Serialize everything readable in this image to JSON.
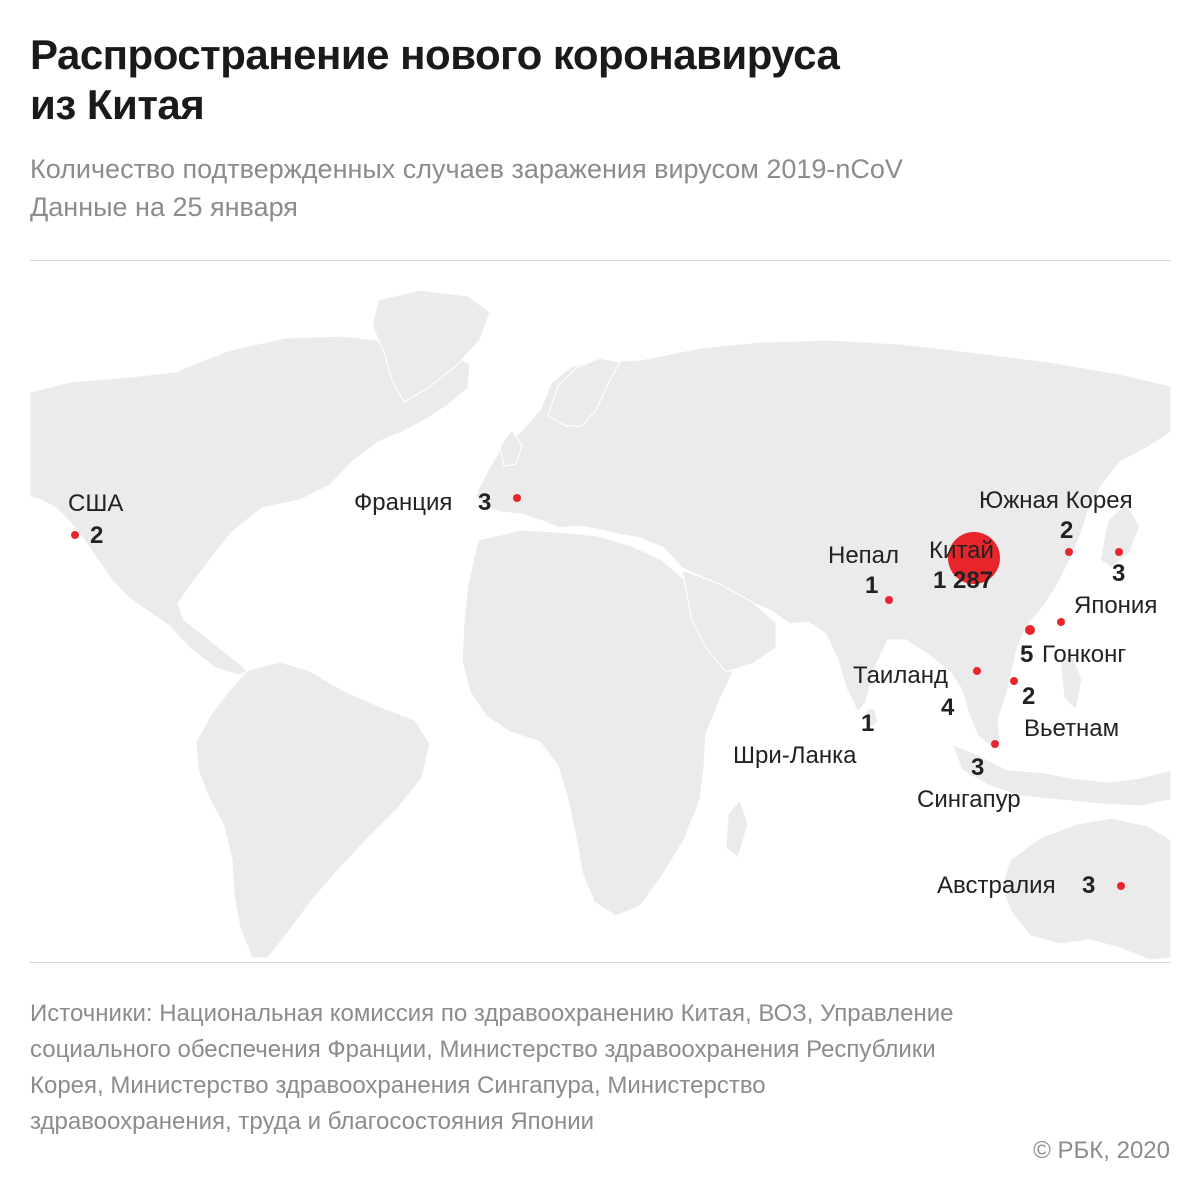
{
  "title": {
    "line1": "Распространение нового коронавируса",
    "line2": "из Китая"
  },
  "subtitle": {
    "line1": "Количество подтвержденных случаев заражения вирусом 2019-nCoV",
    "line2": "Данные на 25 января"
  },
  "colors": {
    "land": "#ebebeb",
    "borders": "#ffffff",
    "marker": "#e8252a",
    "text": "#222222",
    "muted": "#8c8c8c"
  },
  "countries": {
    "usa": {
      "name": "США",
      "cases": "2"
    },
    "france": {
      "name": "Франция",
      "cases": "3"
    },
    "china": {
      "name": "Китай",
      "cases": "1 287"
    },
    "nepal": {
      "name": "Непал",
      "cases": "1"
    },
    "south_korea": {
      "name": "Южная Корея",
      "cases": "2"
    },
    "japan": {
      "name": "Япония",
      "cases": "3"
    },
    "hong_kong": {
      "name": "Гонконг",
      "cases": "5"
    },
    "thailand": {
      "name": "Таиланд",
      "cases": "4"
    },
    "vietnam": {
      "name": "Вьетнам",
      "cases": "2"
    },
    "sri_lanka": {
      "name": "Шри-Ланка",
      "cases": "1"
    },
    "singapore": {
      "name": "Сингапур",
      "cases": "3"
    },
    "australia": {
      "name": "Австралия",
      "cases": "3"
    }
  },
  "footer": {
    "sources": "Источники: Национальная комиссия по здравоохранению Китая, ВОЗ, Управление социального обеспечения Франции, Министерство здравоохранения Республики Корея, Министерство здравоохранения Сингапура, Министерство здравоохранения, труда и благосостояния Японии",
    "copyright": "© РБК, 2020"
  }
}
